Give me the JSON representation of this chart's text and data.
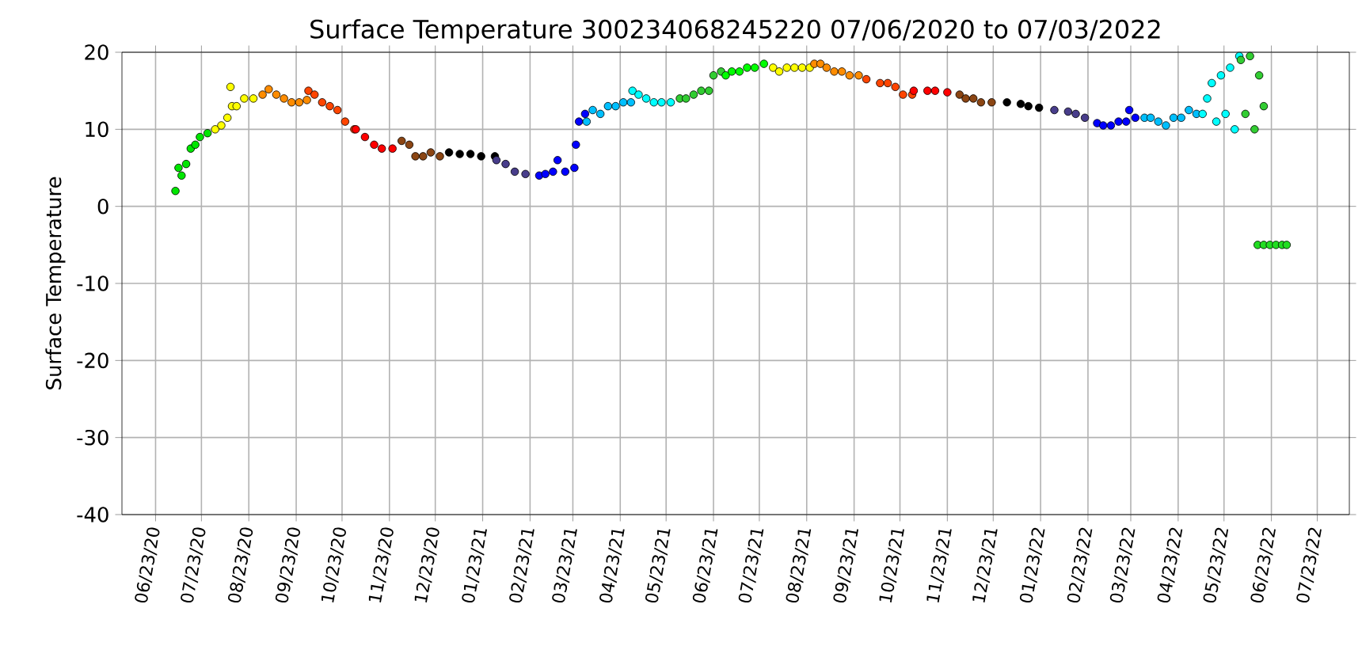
{
  "chart_data": {
    "type": "scatter",
    "title": "Surface Temperature 300234068245220  07/06/2020 to 07/03/2022",
    "ylabel": "Surface Temperature",
    "grid": true,
    "xlim": [
      "2020-06-01",
      "2022-08-13"
    ],
    "ylim": [
      -40,
      20
    ],
    "yticks": [
      -40,
      -30,
      -20,
      -10,
      0,
      10,
      20
    ],
    "xticks": [
      {
        "value": "2020-06-23",
        "label": "06/23/20"
      },
      {
        "value": "2020-07-23",
        "label": "07/23/20"
      },
      {
        "value": "2020-08-23",
        "label": "08/23/20"
      },
      {
        "value": "2020-09-23",
        "label": "09/23/20"
      },
      {
        "value": "2020-10-23",
        "label": "10/23/20"
      },
      {
        "value": "2020-11-23",
        "label": "11/23/20"
      },
      {
        "value": "2020-12-23",
        "label": "12/23/20"
      },
      {
        "value": "2021-01-23",
        "label": "01/23/21"
      },
      {
        "value": "2021-02-23",
        "label": "02/23/21"
      },
      {
        "value": "2021-03-23",
        "label": "03/23/21"
      },
      {
        "value": "2021-04-23",
        "label": "04/23/21"
      },
      {
        "value": "2021-05-23",
        "label": "05/23/21"
      },
      {
        "value": "2021-06-23",
        "label": "06/23/21"
      },
      {
        "value": "2021-07-23",
        "label": "07/23/21"
      },
      {
        "value": "2021-08-23",
        "label": "08/23/21"
      },
      {
        "value": "2021-09-23",
        "label": "09/23/21"
      },
      {
        "value": "2021-10-23",
        "label": "10/23/21"
      },
      {
        "value": "2021-11-23",
        "label": "11/23/21"
      },
      {
        "value": "2021-12-23",
        "label": "12/23/21"
      },
      {
        "value": "2022-01-23",
        "label": "01/23/22"
      },
      {
        "value": "2022-02-23",
        "label": "02/23/22"
      },
      {
        "value": "2022-03-23",
        "label": "03/23/22"
      },
      {
        "value": "2022-04-23",
        "label": "04/23/22"
      },
      {
        "value": "2022-05-23",
        "label": "05/23/22"
      },
      {
        "value": "2022-06-23",
        "label": "06/23/22"
      },
      {
        "value": "2022-07-23",
        "label": "07/23/22"
      }
    ],
    "series": [
      {
        "color": "#00e600",
        "x": [
          "2020-07-06",
          "2020-07-08",
          "2020-07-10",
          "2020-07-13",
          "2020-07-16",
          "2020-07-19",
          "2020-07-22",
          "2020-07-27"
        ],
        "values": [
          2.0,
          5.0,
          4.0,
          5.5,
          7.5,
          8.0,
          9.0,
          9.5
        ]
      },
      {
        "color": "#ffff00",
        "x": [
          "2020-08-01",
          "2020-08-05",
          "2020-08-09",
          "2020-08-11",
          "2020-08-12",
          "2020-08-15",
          "2020-08-20",
          "2020-08-26"
        ],
        "values": [
          10.0,
          10.5,
          11.5,
          15.5,
          13.0,
          13.0,
          14.0,
          14.0
        ]
      },
      {
        "color": "#ff8c00",
        "x": [
          "2020-09-01",
          "2020-09-05",
          "2020-09-10",
          "2020-09-15",
          "2020-09-20",
          "2020-09-25",
          "2020-09-30"
        ],
        "values": [
          14.5,
          15.2,
          14.5,
          14.0,
          13.5,
          13.5,
          13.8
        ]
      },
      {
        "color": "#ff4500",
        "x": [
          "2020-10-01",
          "2020-10-05",
          "2020-10-10",
          "2020-10-15",
          "2020-10-20",
          "2020-10-25",
          "2020-10-31"
        ],
        "values": [
          15.0,
          14.5,
          13.5,
          13.0,
          12.5,
          11.0,
          10.0
        ]
      },
      {
        "color": "#ff0000",
        "x": [
          "2020-11-01",
          "2020-11-07",
          "2020-11-13",
          "2020-11-18",
          "2020-11-25"
        ],
        "values": [
          10.0,
          9.0,
          8.0,
          7.5,
          7.5
        ]
      },
      {
        "color": "#8b4513",
        "x": [
          "2020-12-01",
          "2020-12-06",
          "2020-12-10",
          "2020-12-15",
          "2020-12-20",
          "2020-12-26"
        ],
        "values": [
          8.5,
          8.0,
          6.5,
          6.5,
          7.0,
          6.5
        ]
      },
      {
        "color": "#000000",
        "x": [
          "2021-01-01",
          "2021-01-08",
          "2021-01-15",
          "2021-01-22",
          "2021-01-31"
        ],
        "values": [
          7.0,
          6.8,
          6.8,
          6.5,
          6.5
        ]
      },
      {
        "color": "#483d8b",
        "x": [
          "2021-02-01",
          "2021-02-07",
          "2021-02-13",
          "2021-02-20"
        ],
        "values": [
          6.0,
          5.5,
          4.5,
          4.2
        ]
      },
      {
        "color": "#0000ff",
        "x": [
          "2021-03-01",
          "2021-03-05",
          "2021-03-10",
          "2021-03-13",
          "2021-03-18",
          "2021-03-24",
          "2021-03-25",
          "2021-03-27",
          "2021-03-31"
        ],
        "values": [
          4.0,
          4.2,
          4.5,
          6.0,
          4.5,
          5.0,
          8.0,
          11.0,
          12.0
        ]
      },
      {
        "color": "#00bfff",
        "x": [
          "2021-04-01",
          "2021-04-05",
          "2021-04-10",
          "2021-04-15",
          "2021-04-20",
          "2021-04-25",
          "2021-04-30"
        ],
        "values": [
          11.0,
          12.5,
          12.0,
          13.0,
          13.0,
          13.5,
          13.5
        ]
      },
      {
        "color": "#00ffff",
        "x": [
          "2021-05-01",
          "2021-05-05",
          "2021-05-10",
          "2021-05-15",
          "2021-05-20",
          "2021-05-26"
        ],
        "values": [
          15.0,
          14.5,
          14.0,
          13.5,
          13.5,
          13.5
        ]
      },
      {
        "color": "#32cd32",
        "x": [
          "2021-06-01",
          "2021-06-05",
          "2021-06-10",
          "2021-06-15",
          "2021-06-20",
          "2021-06-23",
          "2021-06-28"
        ],
        "values": [
          14.0,
          14.0,
          14.5,
          15.0,
          15.0,
          17.0,
          17.5
        ]
      },
      {
        "color": "#00ff00",
        "x": [
          "2021-07-01",
          "2021-07-05",
          "2021-07-10",
          "2021-07-15",
          "2021-07-20",
          "2021-07-26"
        ],
        "values": [
          17.0,
          17.5,
          17.5,
          18.0,
          18.0,
          18.5
        ]
      },
      {
        "color": "#ffff00",
        "x": [
          "2021-08-01",
          "2021-08-05",
          "2021-08-10",
          "2021-08-15",
          "2021-08-20",
          "2021-08-25"
        ],
        "values": [
          18.0,
          17.5,
          18.0,
          18.0,
          18.0,
          18.0
        ]
      },
      {
        "color": "#ff8c00",
        "x": [
          "2021-08-28",
          "2021-09-01",
          "2021-09-05",
          "2021-09-10",
          "2021-09-15",
          "2021-09-20",
          "2021-09-26"
        ],
        "values": [
          18.5,
          18.5,
          18.0,
          17.5,
          17.5,
          17.0,
          17.0
        ]
      },
      {
        "color": "#ff4500",
        "x": [
          "2021-10-01",
          "2021-10-10",
          "2021-10-15",
          "2021-10-20",
          "2021-10-25",
          "2021-10-31"
        ],
        "values": [
          16.5,
          16.0,
          16.0,
          15.5,
          14.5,
          14.5
        ]
      },
      {
        "color": "#ff0000",
        "x": [
          "2021-11-01",
          "2021-11-10",
          "2021-11-15",
          "2021-11-23"
        ],
        "values": [
          15.0,
          15.0,
          15.0,
          14.8
        ]
      },
      {
        "color": "#8b4513",
        "x": [
          "2021-12-01",
          "2021-12-05",
          "2021-12-10",
          "2021-12-15",
          "2021-12-22"
        ],
        "values": [
          14.5,
          14.0,
          14.0,
          13.5,
          13.5
        ]
      },
      {
        "color": "#000000",
        "x": [
          "2022-01-01",
          "2022-01-10",
          "2022-01-15",
          "2022-01-22"
        ],
        "values": [
          13.5,
          13.3,
          13.0,
          12.8
        ]
      },
      {
        "color": "#483d8b",
        "x": [
          "2022-02-01",
          "2022-02-10",
          "2022-02-15",
          "2022-02-21"
        ],
        "values": [
          12.5,
          12.3,
          12.0,
          11.5
        ]
      },
      {
        "color": "#0000ff",
        "x": [
          "2022-03-01",
          "2022-03-05",
          "2022-03-10",
          "2022-03-15",
          "2022-03-20",
          "2022-03-22",
          "2022-03-26"
        ],
        "values": [
          10.8,
          10.5,
          10.5,
          11.0,
          11.0,
          12.5,
          11.5
        ]
      },
      {
        "color": "#00bfff",
        "x": [
          "2022-04-01",
          "2022-04-05",
          "2022-04-10",
          "2022-04-15",
          "2022-04-20",
          "2022-04-25",
          "2022-04-30",
          "2022-05-05"
        ],
        "values": [
          11.5,
          11.5,
          11.0,
          10.5,
          11.5,
          11.5,
          12.5,
          12.0
        ]
      },
      {
        "color": "#00ffff",
        "x": [
          "2022-05-09",
          "2022-05-12",
          "2022-05-15",
          "2022-05-18",
          "2022-05-21",
          "2022-05-24",
          "2022-05-27",
          "2022-05-30",
          "2022-06-02"
        ],
        "values": [
          12.0,
          14.0,
          16.0,
          11.0,
          17.0,
          12.0,
          18.0,
          10.0,
          19.5
        ]
      },
      {
        "color": "#32cd32",
        "x": [
          "2022-06-03",
          "2022-06-06",
          "2022-06-09",
          "2022-06-12",
          "2022-06-15",
          "2022-06-18"
        ],
        "values": [
          19.0,
          12.0,
          19.5,
          10.0,
          17.0,
          13.0
        ]
      },
      {
        "color": "#22dd22",
        "x": [
          "2022-06-14",
          "2022-06-18",
          "2022-06-22",
          "2022-06-26",
          "2022-06-30",
          "2022-07-03"
        ],
        "values": [
          -5.0,
          -5.0,
          -5.0,
          -5.0,
          -5.0,
          -5.0
        ]
      }
    ]
  }
}
